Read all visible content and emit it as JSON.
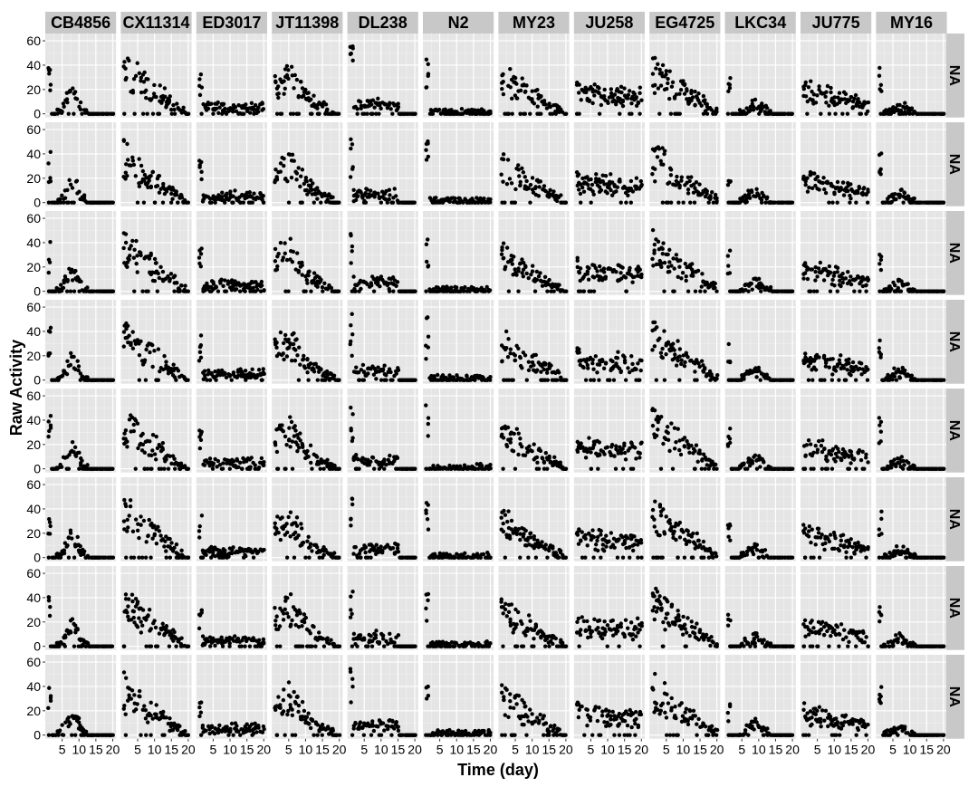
{
  "chart_data": {
    "type": "scatter",
    "layout": "facet-grid",
    "xlabel": "Time (day)",
    "ylabel": "Raw Activity",
    "xlim": [
      0,
      21
    ],
    "ylim": [
      -3,
      66
    ],
    "x_ticks": [
      5,
      10,
      15,
      20
    ],
    "y_ticks": [
      0,
      20,
      40,
      60
    ],
    "columns": [
      "CB4856",
      "CX11314",
      "ED3017",
      "JT11398",
      "DL238",
      "N2",
      "MY23",
      "JU258",
      "EG4725",
      "LKC34",
      "JU775",
      "MY16"
    ],
    "row_labels": [
      "NA",
      "NA",
      "NA",
      "NA",
      "NA",
      "NA",
      "NA",
      "NA"
    ],
    "grid": true,
    "point_color": "#000000",
    "panel_background": "#e5e5e5",
    "strip_background": "#c8c8c8",
    "trend_models": [
      {
        "name": "CB4856",
        "type": "bump",
        "start": 30,
        "peak_x": 8,
        "peak": 16,
        "width": 2.5,
        "end_x": 14
      },
      {
        "name": "CX11314",
        "type": "decay",
        "start": 35,
        "end_x": 19
      },
      {
        "name": "ED3017",
        "type": "low",
        "start": 25,
        "level": 5,
        "end_x": 20
      },
      {
        "name": "JT11398",
        "type": "hump",
        "start": 20,
        "peak_x": 5,
        "peak": 30,
        "end_x": 20
      },
      {
        "name": "DL238",
        "type": "low",
        "start": 38,
        "level": 7,
        "end_x": 15
      },
      {
        "name": "N2",
        "type": "flat",
        "start": 35,
        "level": 1,
        "end_x": 20
      },
      {
        "name": "MY23",
        "type": "decay",
        "start": 28,
        "end_x": 19
      },
      {
        "name": "JU258",
        "type": "steady",
        "start": 20,
        "level": 14,
        "end_x": 20
      },
      {
        "name": "EG4725",
        "type": "decay",
        "start": 35,
        "end_x": 20
      },
      {
        "name": "LKC34",
        "type": "bump",
        "start": 22,
        "peak_x": 9,
        "peak": 8,
        "width": 3,
        "end_x": 14
      },
      {
        "name": "JU775",
        "type": "decay-mild",
        "start": 18,
        "end_x": 20
      },
      {
        "name": "MY16",
        "type": "bump",
        "start": 28,
        "peak_x": 7,
        "peak": 6,
        "width": 3,
        "end_x": 12
      }
    ]
  }
}
